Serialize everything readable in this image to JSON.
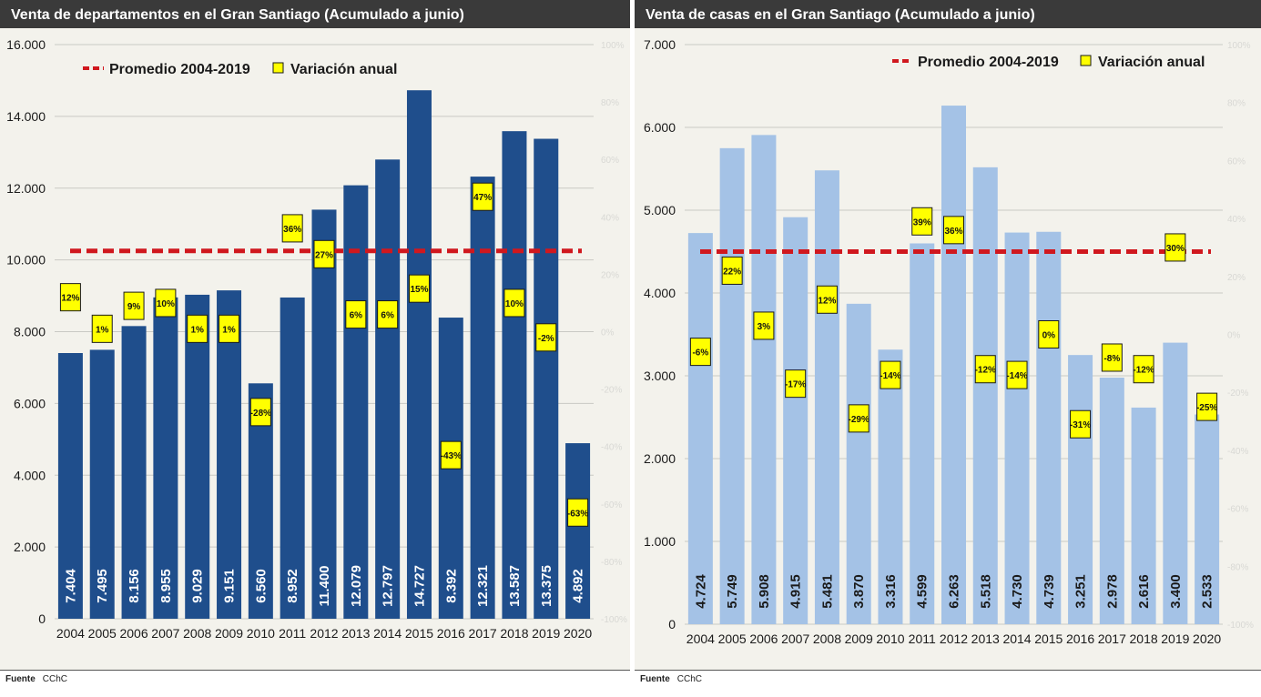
{
  "source_label": "Fuente",
  "source_value": "CChC",
  "chart_data": [
    {
      "type": "bar",
      "title": "Venta de departamentos en el Gran Santiago (Acumulado a junio)",
      "categories": [
        "2004",
        "2005",
        "2006",
        "2007",
        "2008",
        "2009",
        "2010",
        "2011",
        "2012",
        "2013",
        "2014",
        "2015",
        "2016",
        "2017",
        "2018",
        "2019",
        "2020"
      ],
      "values": [
        7404,
        7495,
        8156,
        8955,
        9029,
        9151,
        6560,
        8952,
        11400,
        12079,
        12797,
        14727,
        8392,
        12321,
        13587,
        13375,
        4892
      ],
      "value_labels": [
        "7.404",
        "7.495",
        "8.156",
        "8.955",
        "9.029",
        "9.151",
        "6.560",
        "8.952",
        "11.400",
        "12.079",
        "12.797",
        "14.727",
        "8.392",
        "12.321",
        "13.587",
        "13.375",
        "4.892"
      ],
      "variation": [
        12,
        1,
        9,
        10,
        1,
        1,
        -28,
        36,
        27,
        6,
        6,
        15,
        -43,
        47,
        10,
        -2,
        -63
      ],
      "variation_labels": [
        "12%",
        "1%",
        "9%",
        "10%",
        "1%",
        "1%",
        "-28%",
        "36%",
        "27%",
        "6%",
        "6%",
        "15%",
        "-43%",
        "47%",
        "10%",
        "-2%",
        "-63%"
      ],
      "average": 10250,
      "ylim": [
        0,
        16000
      ],
      "yticks": [
        0,
        2000,
        4000,
        6000,
        8000,
        10000,
        12000,
        14000,
        16000
      ],
      "ytick_labels": [
        "0",
        "2.000",
        "4.000",
        "6.000",
        "8.000",
        "10.000",
        "12.000",
        "14.000",
        "16.000"
      ],
      "y2lim": [
        -100,
        100
      ],
      "y2ticks": [
        -100,
        -80,
        -60,
        -40,
        -20,
        0,
        20,
        40,
        60,
        80,
        100
      ],
      "y2tick_labels": [
        "-100%",
        "-80%",
        "-60%",
        "-40%",
        "-20%",
        "0%",
        "20%",
        "40%",
        "60%",
        "80%",
        "100%"
      ],
      "legend": [
        "Promedio 2004-2019",
        "Variación anual"
      ],
      "legend_position": "top",
      "grid": true,
      "colors": {
        "bar": "#1f4e8c",
        "average": "#d0181e",
        "variation_fill": "#ffff00",
        "bar_label": "#ffffff"
      }
    },
    {
      "type": "bar",
      "title": "Venta de casas en el Gran Santiago (Acumulado a junio)",
      "categories": [
        "2004",
        "2005",
        "2006",
        "2007",
        "2008",
        "2009",
        "2010",
        "2011",
        "2012",
        "2013",
        "2014",
        "2015",
        "2016",
        "2017",
        "2018",
        "2019",
        "2020"
      ],
      "values": [
        4724,
        5749,
        5908,
        4915,
        5481,
        3870,
        3316,
        4599,
        6263,
        5518,
        4730,
        4739,
        3251,
        2978,
        2616,
        3400,
        2533
      ],
      "value_labels": [
        "4.724",
        "5.749",
        "5.908",
        "4.915",
        "5.481",
        "3.870",
        "3.316",
        "4.599",
        "6.263",
        "5.518",
        "4.730",
        "4.739",
        "3.251",
        "2.978",
        "2.616",
        "3.400",
        "2.533"
      ],
      "variation": [
        -6,
        22,
        3,
        -17,
        12,
        -29,
        -14,
        39,
        36,
        -12,
        -14,
        0,
        -31,
        -8,
        -12,
        30,
        -25
      ],
      "variation_labels": [
        "-6%",
        "22%",
        "3%",
        "-17%",
        "12%",
        "-29%",
        "-14%",
        "39%",
        "36%",
        "-12%",
        "-14%",
        "0%",
        "-31%",
        "-8%",
        "-12%",
        "30%",
        "-25%"
      ],
      "average": 4500,
      "ylim": [
        0,
        7000
      ],
      "yticks": [
        0,
        1000,
        2000,
        3000,
        4000,
        5000,
        6000,
        7000
      ],
      "ytick_labels": [
        "0",
        "1.000",
        "2.000",
        "3.000",
        "4.000",
        "5.000",
        "6.000",
        "7.000"
      ],
      "y2lim": [
        -100,
        100
      ],
      "y2ticks": [
        -100,
        -80,
        -60,
        -40,
        -20,
        0,
        20,
        40,
        60,
        80,
        100
      ],
      "y2tick_labels": [
        "-100%",
        "-80%",
        "-60%",
        "-40%",
        "-20%",
        "0%",
        "20%",
        "40%",
        "60%",
        "80%",
        "100%"
      ],
      "legend": [
        "Promedio 2004-2019",
        "Variación anual"
      ],
      "legend_position": "top-right",
      "grid": true,
      "colors": {
        "bar": "#a4c2e6",
        "average": "#d0181e",
        "variation_fill": "#ffff00",
        "bar_label": "#1a1a1a"
      }
    }
  ]
}
